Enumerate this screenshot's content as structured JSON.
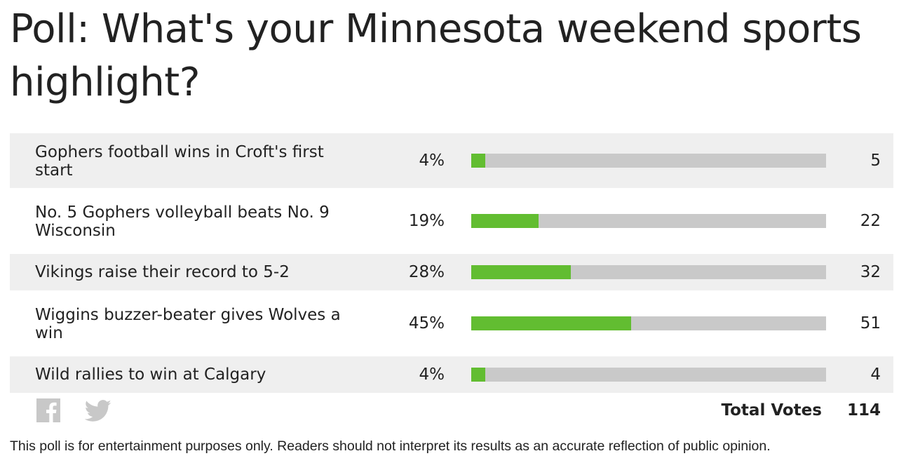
{
  "poll": {
    "title": "Poll: What's your Minnesota weekend sports highlight?",
    "options": [
      {
        "label": "Gophers football wins in Croft's first start",
        "percent_text": "4%",
        "percent": 4,
        "votes": "5"
      },
      {
        "label": "No. 5 Gophers volleyball beats No. 9 Wisconsin",
        "percent_text": "19%",
        "percent": 19,
        "votes": "22"
      },
      {
        "label": "Vikings raise their record to 5-2",
        "percent_text": "28%",
        "percent": 28,
        "votes": "32"
      },
      {
        "label": "Wiggins buzzer-beater gives Wolves a win",
        "percent_text": "45%",
        "percent": 45,
        "votes": "51"
      },
      {
        "label": "Wild rallies to win at Calgary",
        "percent_text": "4%",
        "percent": 4,
        "votes": "4"
      }
    ],
    "total_label": "Total Votes",
    "total_votes": "114",
    "disclaimer": "This poll is for entertainment purposes only. Readers should not interpret its results as an accurate reflection of public opinion."
  },
  "share": {
    "icons": [
      "facebook-icon",
      "twitter-icon"
    ]
  },
  "colors": {
    "bar_fill": "#62bd31",
    "bar_track": "#c9c9c9",
    "row_shade": "#efefef",
    "text": "#222222",
    "icon": "#c8c8c8"
  }
}
